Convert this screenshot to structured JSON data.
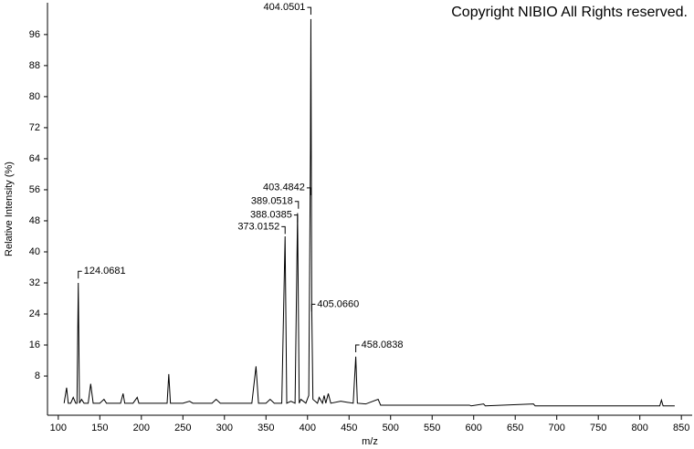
{
  "chart_data": {
    "type": "line",
    "watermark": "Copyright NIBIO All Rights reserved.",
    "x_label": "m/z",
    "y_label": "Relative Intensity (%)",
    "xlim": [
      87,
      863
    ],
    "ylim": [
      -2.1,
      104.2
    ],
    "xticks": [
      100,
      150,
      200,
      250,
      300,
      350,
      400,
      450,
      500,
      550,
      600,
      650,
      700,
      750,
      800,
      850
    ],
    "yticks": [
      8,
      16,
      24,
      32,
      40,
      48,
      56,
      64,
      72,
      80,
      88,
      96
    ],
    "grid": false,
    "series": [
      {
        "name": "spectrum",
        "color": "#000000",
        "x": [
          107,
          110,
          112,
          115,
          118,
          121,
          122.5,
          124.07,
          125.5,
          128,
          131,
          136,
          139,
          142,
          150,
          155,
          158,
          170,
          175,
          178,
          180,
          182,
          190,
          195,
          197,
          220,
          231,
          233,
          235,
          250,
          258,
          262,
          285,
          290,
          295,
          320,
          333,
          338,
          341,
          350,
          355,
          360,
          365,
          369,
          373,
          375,
          380,
          385,
          388,
          390,
          392,
          398,
          401.5,
          403.5,
          404.05,
          405.07,
          406.5,
          412,
          414,
          418,
          420,
          422,
          425,
          428,
          440,
          455,
          458.08,
          460,
          470,
          485,
          488,
          500,
          595,
          597,
          612,
          614,
          672,
          674,
          824,
          826,
          828,
          842
        ],
        "values": [
          1,
          5,
          1,
          1,
          2.5,
          1,
          1,
          32,
          1,
          2,
          1,
          1,
          6,
          1,
          1,
          2,
          1,
          1,
          1,
          3.5,
          1,
          1,
          1,
          2.5,
          1,
          1,
          1,
          8.5,
          1,
          1,
          1.5,
          1,
          1,
          2,
          1,
          1,
          1,
          10.5,
          1,
          1,
          2,
          1,
          1,
          1,
          44,
          1,
          1.5,
          1,
          50,
          1,
          2,
          1,
          3,
          66,
          100,
          26,
          2,
          1,
          2.5,
          1,
          3,
          1,
          3.5,
          1,
          1.5,
          1,
          13,
          1,
          0.8,
          2,
          0.5,
          0.5,
          0.5,
          0.3,
          0.8,
          0.3,
          0.8,
          0.3,
          0.3,
          1.8,
          0.3,
          0.3
        ]
      }
    ],
    "annotations": [
      {
        "x": 404.0501,
        "y": 103,
        "label": "404.0501",
        "anchor": "left"
      },
      {
        "x": 403.4842,
        "y": 56.5,
        "label": "403.4842",
        "anchor": "left"
      },
      {
        "x": 389.0518,
        "y": 53,
        "label": "389.0518",
        "anchor": "left"
      },
      {
        "x": 388.0385,
        "y": 49.5,
        "label": "388.0385",
        "anchor": "left"
      },
      {
        "x": 373.0152,
        "y": 46.5,
        "label": "373.0152",
        "anchor": "left"
      },
      {
        "x": 124.0681,
        "y": 35,
        "label": "124.0681",
        "anchor": "right"
      },
      {
        "x": 405.066,
        "y": 26.5,
        "label": "405.0660",
        "anchor": "right"
      },
      {
        "x": 458.0838,
        "y": 16,
        "label": "458.0838",
        "anchor": "right"
      }
    ]
  }
}
